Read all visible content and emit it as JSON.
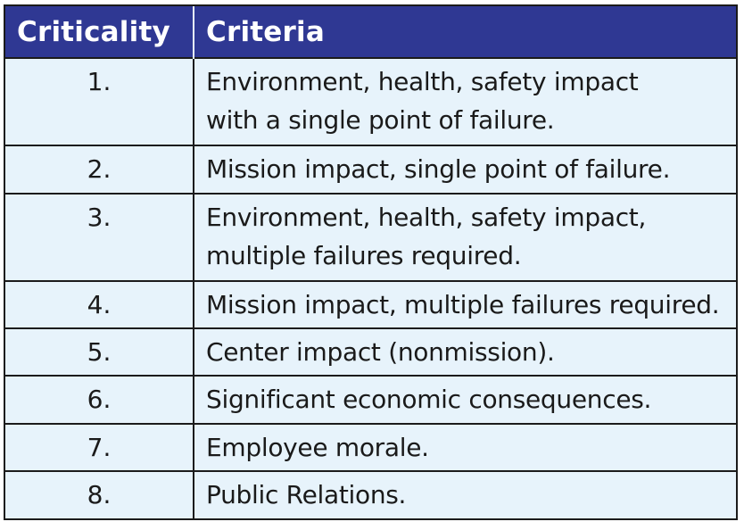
{
  "table": {
    "headers": {
      "criticality": "Criticality",
      "criteria": "Criteria"
    },
    "rows": [
      {
        "num": "1.",
        "text": "Environment, health, safety impact\nwith a single point of failure."
      },
      {
        "num": "2.",
        "text": "Mission impact, single point of failure."
      },
      {
        "num": "3.",
        "text": "Environment, health, safety impact,\nmultiple failures required."
      },
      {
        "num": "4.",
        "text": "Mission impact, multiple failures required."
      },
      {
        "num": "5.",
        "text": "Center impact (nonmission)."
      },
      {
        "num": "6.",
        "text": "Significant economic consequences."
      },
      {
        "num": "7.",
        "text": "Employee morale."
      },
      {
        "num": "8.",
        "text": "Public Relations."
      }
    ]
  }
}
